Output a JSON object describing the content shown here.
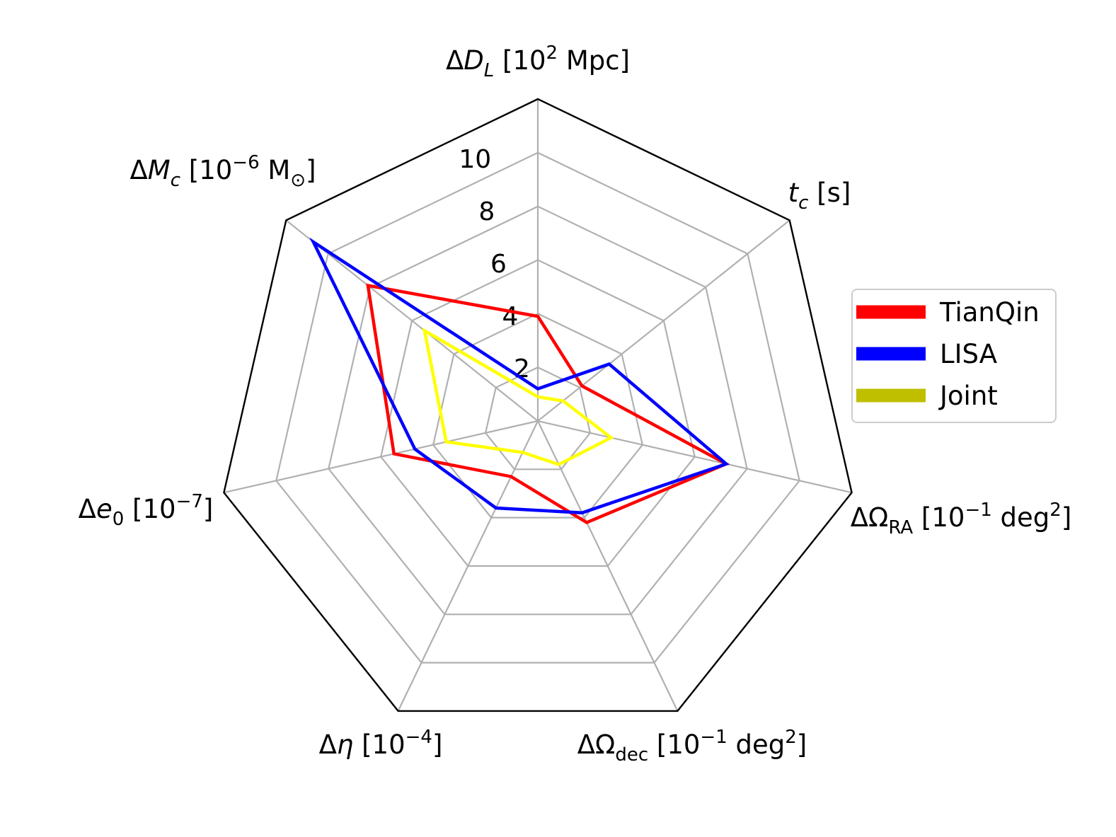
{
  "chart_data": {
    "type": "radar",
    "axes": [
      {
        "label": "ΔD_L [10^2 Mpc]",
        "parts": [
          {
            "t": "Δ"
          },
          {
            "t": "D",
            "i": true
          },
          {
            "t": "L",
            "i": true,
            "sub": true
          },
          {
            "t": " [10"
          },
          {
            "t": "2",
            "sup": true
          },
          {
            "t": " Mpc]"
          }
        ]
      },
      {
        "label": "t_c [s]",
        "parts": [
          {
            "t": "t",
            "i": true
          },
          {
            "t": "c",
            "i": true,
            "sub": true
          },
          {
            "t": " [s]"
          }
        ]
      },
      {
        "label": "ΔΩ_RA [10^-1 deg^2]",
        "parts": [
          {
            "t": "ΔΩ"
          },
          {
            "t": "RA",
            "sub": true
          },
          {
            "t": " [10"
          },
          {
            "t": "−1",
            "sup": true
          },
          {
            "t": " deg"
          },
          {
            "t": "2",
            "sup": true
          },
          {
            "t": "]"
          }
        ]
      },
      {
        "label": "ΔΩ_dec [10^-1 deg^2]",
        "parts": [
          {
            "t": "ΔΩ"
          },
          {
            "t": "dec",
            "sub": true
          },
          {
            "t": " [10"
          },
          {
            "t": "−1",
            "sup": true
          },
          {
            "t": " deg"
          },
          {
            "t": "2",
            "sup": true
          },
          {
            "t": "]"
          }
        ]
      },
      {
        "label": "Δη [10^-4]",
        "parts": [
          {
            "t": "Δ"
          },
          {
            "t": "η",
            "i": true
          },
          {
            "t": " [10"
          },
          {
            "t": "−4",
            "sup": true
          },
          {
            "t": "]"
          }
        ]
      },
      {
        "label": "Δe_0 [10^-7]",
        "parts": [
          {
            "t": "Δ"
          },
          {
            "t": "e",
            "i": true
          },
          {
            "t": "0",
            "sub": true
          },
          {
            "t": " [10"
          },
          {
            "t": "−7",
            "sup": true
          },
          {
            "t": "]"
          }
        ]
      },
      {
        "label": "ΔM_c [10^-6 M_⊙]",
        "parts": [
          {
            "t": "Δ"
          },
          {
            "t": "M",
            "i": true
          },
          {
            "t": "c",
            "i": true,
            "sub": true
          },
          {
            "t": " [10"
          },
          {
            "t": "−6",
            "sup": true
          },
          {
            "t": " M"
          },
          {
            "t": "⊙",
            "sub": true
          },
          {
            "t": "]"
          }
        ]
      }
    ],
    "rticks": [
      2,
      4,
      6,
      8,
      10
    ],
    "rlim": [
      0,
      12
    ],
    "grid": true,
    "legend_position": "right",
    "series": [
      {
        "name": "TianQin",
        "color": "#ff0000",
        "legend_color": "#ff0000",
        "values": [
          3.9,
          2.1,
          7.2,
          4.2,
          2.3,
          5.5,
          8.1
        ]
      },
      {
        "name": "LISA",
        "color": "#0000ff",
        "legend_color": "#0000ff",
        "values": [
          1.2,
          3.4,
          7.2,
          3.8,
          3.6,
          4.7,
          10.7
        ]
      },
      {
        "name": "Joint",
        "color": "#ffff00",
        "legend_color": "#bfbf00",
        "values": [
          0.9,
          1.2,
          2.8,
          1.8,
          1.3,
          3.5,
          5.4
        ]
      }
    ]
  }
}
